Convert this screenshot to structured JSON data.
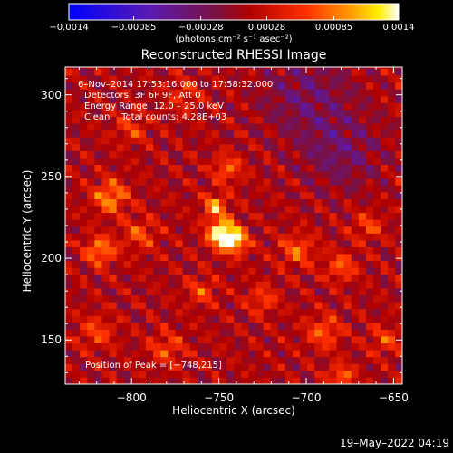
{
  "chart_data": {
    "type": "heatmap",
    "title": "Reconstructed RHESSI Image",
    "xlabel": "Heliocentric X (arcsec)",
    "ylabel": "Heliocentric Y (arcsec)",
    "xlim": [
      -838,
      -645
    ],
    "ylim": [
      123,
      317
    ],
    "x_ticks": [
      "−800",
      "−750",
      "−700",
      "−650"
    ],
    "x_tick_values": [
      -800,
      -750,
      -700,
      -650
    ],
    "y_ticks": [
      "150",
      "200",
      "250",
      "300"
    ],
    "y_tick_values": [
      150,
      200,
      250,
      300
    ],
    "annotations": {
      "time_range": "6–Nov–2014 17:53:16.000 to 17:58:32.000",
      "detectors": "Detectors: 3F 6F 9F, Att 0",
      "energy_range": "Energy Range: 12.0 – 25.0 keV",
      "clean_counts": "Clean    Total counts: 4.28E+03",
      "peak_position": "Position of Peak = [−748,215]"
    },
    "peak": {
      "x": -748,
      "y": 215
    },
    "colorbar": {
      "range": [
        -0.0014,
        0.0014
      ],
      "ticks": [
        "−0.0014",
        "−0.00085",
        "−0.00028",
        "0.00028",
        "0.00085",
        "0.0014"
      ],
      "tick_values": [
        -0.0014,
        -0.00085,
        -0.00028,
        0.00028,
        0.00085,
        0.0014
      ],
      "unit": "(photons cm⁻² s⁻¹ asec⁻²)",
      "colormap": "blue-purple-red-orange-yellow-white"
    },
    "sources": [
      {
        "x": -748,
        "y": 215,
        "amp": 0.0014,
        "width": 6
      },
      {
        "x": -740,
        "y": 210,
        "amp": 0.0009,
        "width": 5
      },
      {
        "x": -752,
        "y": 232,
        "amp": 0.00085,
        "width": 5
      },
      {
        "x": -745,
        "y": 255,
        "amp": 0.0006,
        "width": 6
      },
      {
        "x": -812,
        "y": 238,
        "amp": 0.0008,
        "width": 7
      },
      {
        "x": -818,
        "y": 205,
        "amp": 0.0008,
        "width": 6
      },
      {
        "x": -795,
        "y": 215,
        "amp": 0.0005,
        "width": 7
      },
      {
        "x": -705,
        "y": 205,
        "amp": 0.0006,
        "width": 7
      },
      {
        "x": -680,
        "y": 195,
        "amp": 0.0006,
        "width": 6
      },
      {
        "x": -665,
        "y": 220,
        "amp": 0.0005,
        "width": 6
      },
      {
        "x": -690,
        "y": 155,
        "amp": 0.0006,
        "width": 7
      },
      {
        "x": -655,
        "y": 150,
        "amp": 0.0005,
        "width": 6
      },
      {
        "x": -820,
        "y": 155,
        "amp": 0.0005,
        "width": 7
      },
      {
        "x": -780,
        "y": 145,
        "amp": 0.0005,
        "width": 7
      },
      {
        "x": -760,
        "y": 180,
        "amp": 0.0005,
        "width": 6
      },
      {
        "x": -725,
        "y": 175,
        "amp": 0.0005,
        "width": 6
      },
      {
        "x": -680,
        "y": 128,
        "amp": 0.0007,
        "width": 5
      },
      {
        "x": -800,
        "y": 280,
        "amp": 0.0004,
        "width": 7
      },
      {
        "x": -770,
        "y": 300,
        "amp": 0.0004,
        "width": 7
      },
      {
        "x": -700,
        "y": 300,
        "amp": -0.0004,
        "width": 18
      },
      {
        "x": -680,
        "y": 265,
        "amp": -0.0004,
        "width": 16
      }
    ]
  },
  "footer": {
    "date": "19–May–2022 04:19"
  }
}
